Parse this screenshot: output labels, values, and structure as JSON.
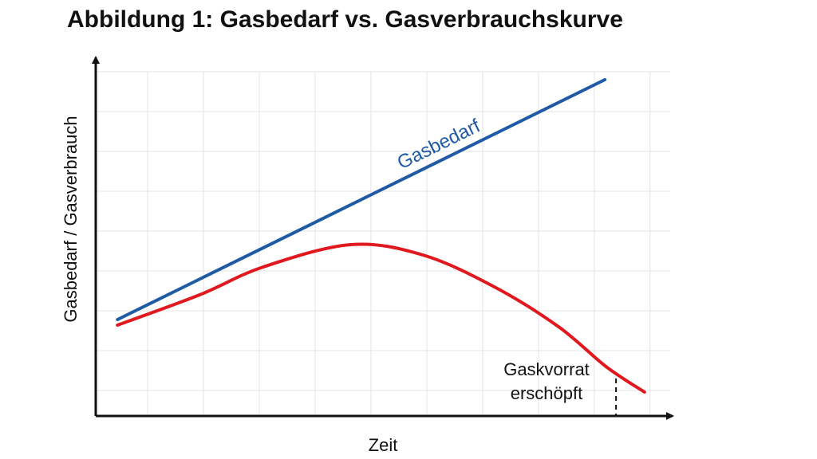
{
  "chart_data": {
    "type": "line",
    "title": "Abbildung 1: Gasbedarf vs. Gasverbrauchskurve",
    "x_label": "Zeit",
    "y_label": "Gasbedarf / Gasverbrauch",
    "xlim": [
      0.07,
      10.36
    ],
    "ylim": [
      0.36,
      9.3
    ],
    "xticks": [
      1,
      2,
      3,
      4,
      5,
      6,
      7,
      8,
      9,
      10
    ],
    "yticks": [
      1,
      2,
      3,
      4,
      5,
      6,
      7,
      8,
      9
    ],
    "grid": true,
    "series": [
      {
        "name": "Gasbedarf",
        "color": "#1f5aa6",
        "x": [
          0.46,
          9.19
        ],
        "values": [
          2.78,
          8.8
        ]
      },
      {
        "color": "#e0191e",
        "x": [
          0.46,
          1.93,
          3.07,
          4.64,
          5.93,
          7.21,
          8.36,
          9.21,
          9.9
        ],
        "values": [
          2.64,
          3.4,
          4.1,
          4.66,
          4.4,
          3.6,
          2.6,
          1.6,
          0.96
        ]
      }
    ],
    "annotation": {
      "lines": [
        "Gaskvorrat",
        "erschöpft"
      ],
      "x": 9.39
    }
  }
}
